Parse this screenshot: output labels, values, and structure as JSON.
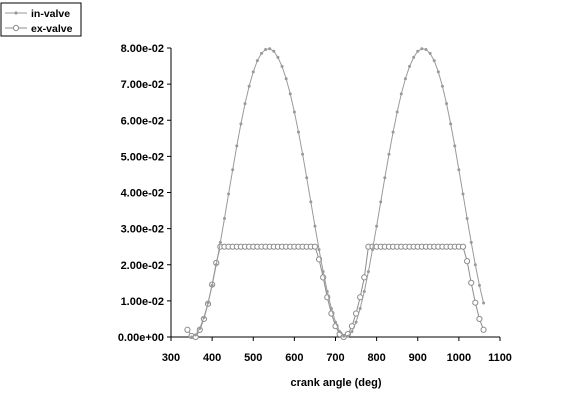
{
  "chart_data": {
    "type": "line",
    "title": "",
    "xlabel": "crank angle (deg)",
    "ylabel": "",
    "xlim": [
      300,
      1100
    ],
    "ylim": [
      0,
      0.08
    ],
    "x_ticks": [
      300,
      400,
      500,
      600,
      700,
      800,
      900,
      1000,
      1100
    ],
    "x_tick_labels": [
      "300",
      "400",
      "500",
      "600",
      "700",
      "800",
      "900",
      "1000",
      "1100"
    ],
    "y_ticks": [
      0,
      0.01,
      0.02,
      0.03,
      0.04,
      0.05,
      0.06,
      0.07,
      0.08
    ],
    "y_tick_labels": [
      "0.00e+00",
      "1.00e-02",
      "2.00e-02",
      "3.00e-02",
      "4.00e-02",
      "5.00e-02",
      "6.00e-02",
      "7.00e-02",
      "8.00e-02"
    ],
    "grid": false,
    "legend_position": "top-left",
    "colors": {
      "in_valve": "#9a9a9a",
      "ex_valve": "#8c8c8c",
      "axis": "#000000"
    },
    "series": [
      {
        "name": "in-valve",
        "marker": "dot",
        "x": [
          350,
          360,
          370,
          380,
          390,
          400,
          410,
          420,
          430,
          440,
          450,
          460,
          470,
          480,
          490,
          500,
          510,
          520,
          530,
          540,
          550,
          560,
          570,
          580,
          590,
          600,
          610,
          620,
          630,
          640,
          650,
          660,
          670,
          680,
          690,
          700,
          710,
          720,
          730,
          740,
          750,
          760,
          770,
          780,
          790,
          800,
          810,
          820,
          830,
          840,
          850,
          860,
          870,
          880,
          890,
          900,
          910,
          920,
          930,
          940,
          950,
          960,
          970,
          980,
          990,
          1000,
          1010,
          1020,
          1030,
          1040,
          1050,
          1060
        ],
        "y": [
          0.0,
          0.0006,
          0.0024,
          0.0054,
          0.0094,
          0.0143,
          0.02,
          0.0262,
          0.0328,
          0.0396,
          0.0463,
          0.0529,
          0.059,
          0.0646,
          0.0694,
          0.0734,
          0.0765,
          0.0785,
          0.0796,
          0.0798,
          0.0791,
          0.0774,
          0.0749,
          0.0715,
          0.0673,
          0.0623,
          0.0567,
          0.0506,
          0.0441,
          0.0374,
          0.0307,
          0.0242,
          0.0181,
          0.0126,
          0.0079,
          0.0041,
          0.0015,
          0.0002,
          0.0002,
          0.0015,
          0.0041,
          0.0079,
          0.0126,
          0.0181,
          0.0242,
          0.0307,
          0.0374,
          0.0441,
          0.0506,
          0.0567,
          0.0623,
          0.0673,
          0.0715,
          0.0749,
          0.0774,
          0.0791,
          0.0798,
          0.0796,
          0.0785,
          0.0765,
          0.0734,
          0.0694,
          0.0646,
          0.059,
          0.0529,
          0.0463,
          0.0396,
          0.0328,
          0.0262,
          0.02,
          0.0143,
          0.0094
        ]
      },
      {
        "name": "ex-valve",
        "marker": "circle",
        "x": [
          340,
          350,
          360,
          370,
          380,
          390,
          400,
          410,
          420,
          430,
          440,
          450,
          460,
          470,
          480,
          490,
          500,
          510,
          520,
          530,
          540,
          550,
          560,
          570,
          580,
          590,
          600,
          610,
          620,
          630,
          640,
          650,
          660,
          670,
          680,
          690,
          700,
          710,
          720,
          730,
          740,
          750,
          760,
          770,
          780,
          790,
          800,
          810,
          820,
          830,
          840,
          850,
          860,
          870,
          880,
          890,
          900,
          910,
          920,
          930,
          940,
          950,
          960,
          970,
          980,
          990,
          1000,
          1010,
          1020,
          1030,
          1040,
          1050,
          1060
        ],
        "y": [
          0.002,
          0.0003,
          0.0,
          0.002,
          0.005,
          0.0092,
          0.0145,
          0.0205,
          0.025,
          0.025,
          0.025,
          0.025,
          0.025,
          0.025,
          0.025,
          0.025,
          0.025,
          0.025,
          0.025,
          0.025,
          0.025,
          0.025,
          0.025,
          0.025,
          0.025,
          0.025,
          0.025,
          0.025,
          0.025,
          0.025,
          0.025,
          0.025,
          0.0215,
          0.0165,
          0.011,
          0.0065,
          0.003,
          0.0008,
          0.0,
          0.0008,
          0.003,
          0.0065,
          0.011,
          0.0165,
          0.025,
          0.025,
          0.025,
          0.025,
          0.025,
          0.025,
          0.025,
          0.025,
          0.025,
          0.025,
          0.025,
          0.025,
          0.025,
          0.025,
          0.025,
          0.025,
          0.025,
          0.025,
          0.025,
          0.025,
          0.025,
          0.025,
          0.025,
          0.025,
          0.021,
          0.015,
          0.0095,
          0.005,
          0.002
        ]
      }
    ]
  }
}
